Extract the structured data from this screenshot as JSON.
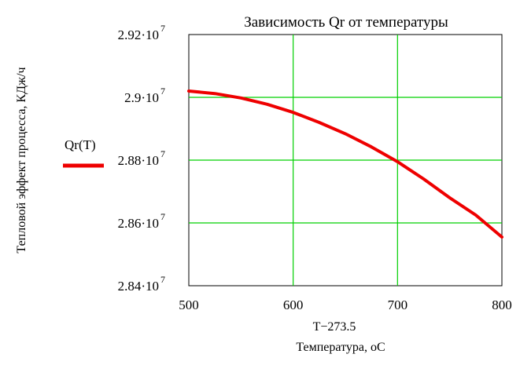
{
  "chart_data": {
    "type": "line",
    "title": "Зависимость Qr от температуры",
    "xlabel_expr": "T−273.5",
    "xlabel": "Температура, оС",
    "ylabel": "Тепловой эффект процесса, КДж/ч",
    "xlim": [
      500,
      800
    ],
    "ylim": [
      28400000,
      29200000
    ],
    "x_ticks": [
      500,
      600,
      700,
      800
    ],
    "x_tick_labels": [
      "500",
      "600",
      "700",
      "800"
    ],
    "y_ticks": [
      {
        "value": 29200000,
        "mantissa": "2.92",
        "exp": "7"
      },
      {
        "value": 29000000,
        "mantissa": "2.9",
        "exp": "7"
      },
      {
        "value": 28800000,
        "mantissa": "2.88",
        "exp": "7"
      },
      {
        "value": 28600000,
        "mantissa": "2.86",
        "exp": "7"
      },
      {
        "value": 28400000,
        "mantissa": "2.84",
        "exp": "7"
      }
    ],
    "y_tick_dot": "·10",
    "grid": true,
    "grid_color": "#00d000",
    "legend": {
      "label": "Qr(T)",
      "placement": "left"
    },
    "series": [
      {
        "name": "Qr(T)",
        "color": "#ee0000",
        "x": [
          500,
          525,
          550,
          575,
          600,
          625,
          650,
          675,
          700,
          725,
          750,
          775,
          800
        ],
        "y": [
          29020000,
          29012000,
          28998000,
          28978000,
          28952000,
          28920000,
          28884000,
          28842000,
          28795000,
          28740000,
          28680000,
          28625000,
          28555000
        ]
      }
    ]
  }
}
